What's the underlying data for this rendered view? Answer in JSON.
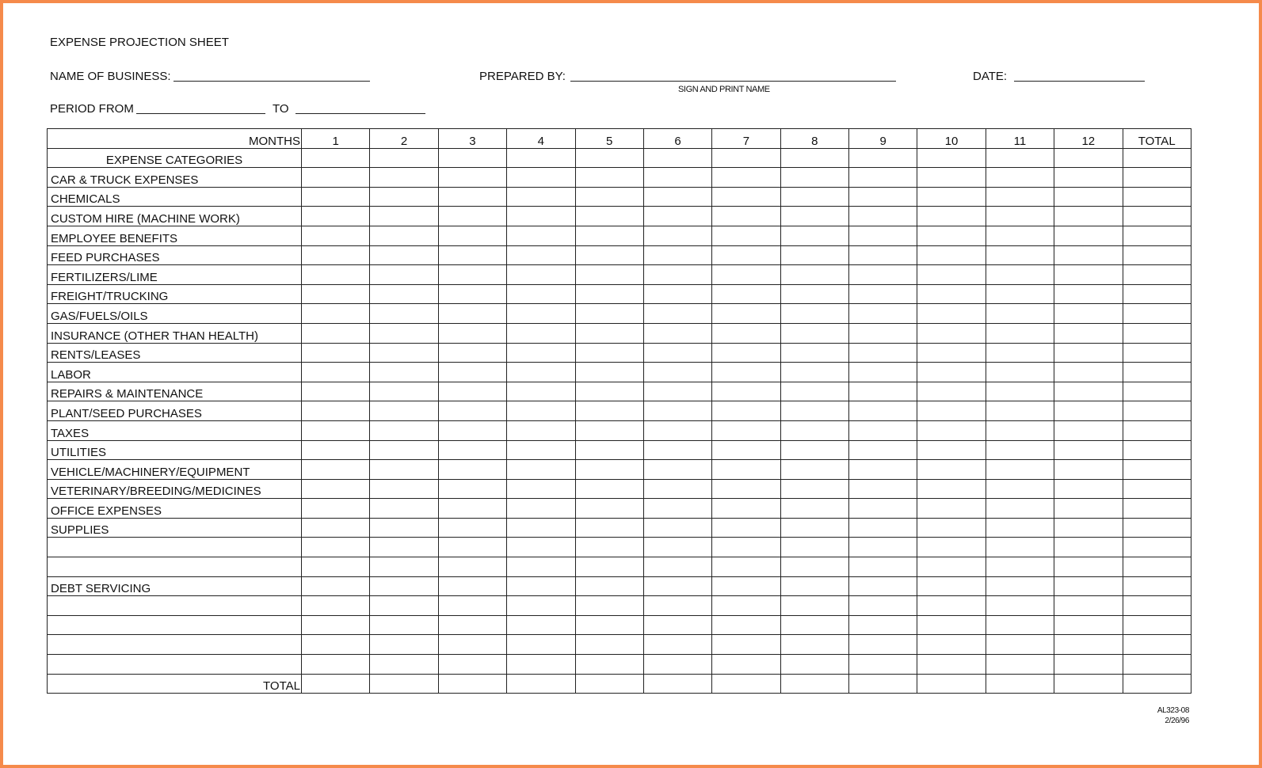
{
  "title": "EXPENSE PROJECTION SHEET",
  "header": {
    "business_label": "NAME OF BUSINESS:",
    "prepared_label": "PREPARED BY:",
    "sign_label": "SIGN AND PRINT NAME",
    "date_label": "DATE:",
    "period_from_label": "PERIOD FROM",
    "to_label": "TO"
  },
  "table": {
    "months_label": "MONTHS",
    "columns": [
      "1",
      "2",
      "3",
      "4",
      "5",
      "6",
      "7",
      "8",
      "9",
      "10",
      "11",
      "12",
      "TOTAL"
    ],
    "categories_label": "EXPENSE CATEGORIES",
    "rows": [
      "CAR & TRUCK EXPENSES",
      "CHEMICALS",
      "CUSTOM HIRE (MACHINE WORK)",
      "EMPLOYEE BENEFITS",
      "FEED PURCHASES",
      "FERTILIZERS/LIME",
      "FREIGHT/TRUCKING",
      "GAS/FUELS/OILS",
      "INSURANCE (OTHER THAN HEALTH)",
      "RENTS/LEASES",
      "LABOR",
      "REPAIRS & MAINTENANCE",
      "PLANT/SEED PURCHASES",
      "TAXES",
      "UTILITIES",
      "VEHICLE/MACHINERY/EQUIPMENT",
      "VETERINARY/BREEDING/MEDICINES",
      "OFFICE EXPENSES",
      "SUPPLIES",
      "",
      "",
      "DEBT SERVICING",
      "",
      "",
      "",
      ""
    ],
    "total_label": "TOTAL"
  },
  "footer": {
    "form_code": "AL323-08",
    "form_date": "2/26/96"
  },
  "colors": {
    "border": "#f58a4b"
  }
}
